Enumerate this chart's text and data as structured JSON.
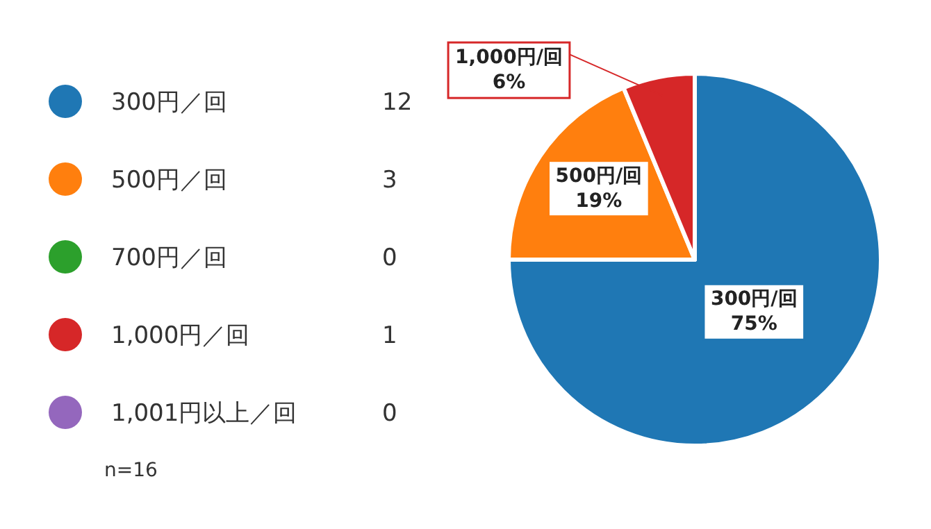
{
  "chart_data": {
    "type": "pie",
    "categories": [
      "300円／回",
      "500円／回",
      "700円／回",
      "1,000円／回",
      "1,001円以上／回"
    ],
    "values": [
      12,
      3,
      0,
      1,
      0
    ],
    "colors": [
      "#1f77b4",
      "#ff7f0e",
      "#2ca02c",
      "#d62728",
      "#9467bd"
    ],
    "value_labels": [
      "12",
      "3",
      "0",
      "1",
      "0"
    ],
    "legend": "left",
    "annotations": [
      {
        "text": "300円/回\n75%",
        "x": "300円／回"
      },
      {
        "text": "500円/回\n19%",
        "x": "500円／回"
      },
      {
        "text": "1,000円/回\n6%",
        "x": "1,000円／回"
      },
      "n=16"
    ]
  }
}
